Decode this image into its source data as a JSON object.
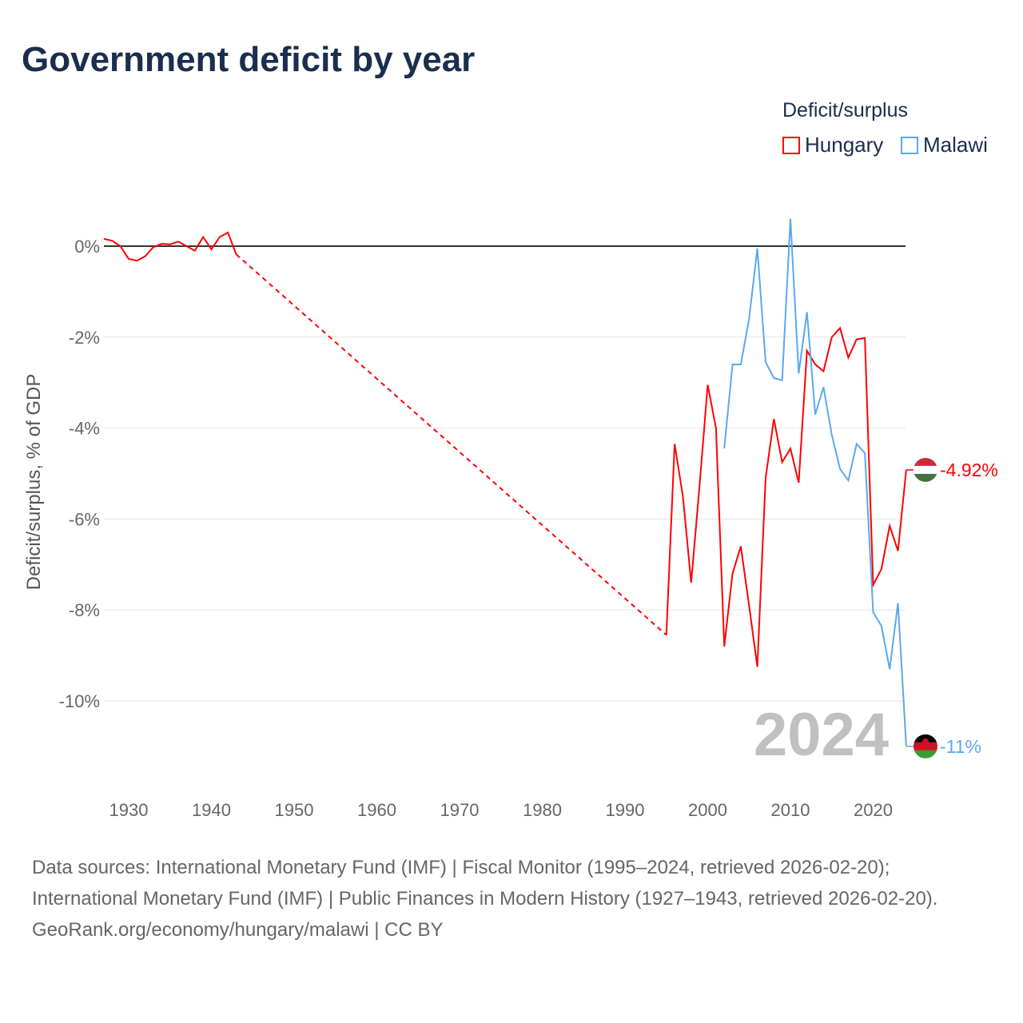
{
  "title": "Government deficit by year",
  "legend": {
    "title": "Deficit/surplus",
    "items": [
      {
        "name": "Hungary",
        "color": "#ff0000"
      },
      {
        "name": "Malawi",
        "color": "#5ba8ef"
      }
    ]
  },
  "year_watermark": "2024",
  "footer": {
    "sources": "Data sources: International Monetary Fund (IMF) | Fiscal Monitor (1995–2024, retrieved 2026-02-20); International Monetary Fund (IMF) | Public Finances in Modern History (1927–1943, retrieved 2026-02-20).",
    "credit": "GeoRank.org/economy/hungary/malawi | CC BY"
  },
  "chart_data": {
    "type": "line",
    "title": "Government deficit by year",
    "xlabel": "",
    "ylabel": "Deficit/surplus, % of GDP",
    "xlim": [
      1927,
      2024
    ],
    "ylim": [
      -11.8,
      1.0
    ],
    "xticks": [
      1930,
      1940,
      1950,
      1960,
      1970,
      1980,
      1990,
      2000,
      2010,
      2020
    ],
    "yticks": [
      {
        "v": 0,
        "label": "0%"
      },
      {
        "v": -2,
        "label": "-2%"
      },
      {
        "v": -4,
        "label": "-4%"
      },
      {
        "v": -6,
        "label": "-6%"
      },
      {
        "v": -8,
        "label": "-8%"
      },
      {
        "v": -10,
        "label": "-10%"
      }
    ],
    "series": [
      {
        "name": "Hungary",
        "color": "#ff0000",
        "end_label": "-4.92%",
        "x": [
          1927,
          1928,
          1929,
          1930,
          1931,
          1932,
          1933,
          1934,
          1935,
          1936,
          1937,
          1938,
          1939,
          1940,
          1941,
          1942,
          1943,
          1995,
          1996,
          1997,
          1998,
          1999,
          2000,
          2001,
          2002,
          2003,
          2004,
          2005,
          2006,
          2007,
          2008,
          2009,
          2010,
          2011,
          2012,
          2013,
          2014,
          2015,
          2016,
          2017,
          2018,
          2019,
          2020,
          2021,
          2022,
          2023,
          2024
        ],
        "y": [
          0.16,
          0.12,
          0.0,
          -0.28,
          -0.32,
          -0.22,
          -0.02,
          0.05,
          0.04,
          0.1,
          0.0,
          -0.1,
          0.2,
          -0.07,
          0.2,
          0.3,
          -0.18,
          -8.55,
          -4.35,
          -5.5,
          -7.4,
          -5.3,
          -3.05,
          -4.0,
          -8.8,
          -7.2,
          -6.6,
          -7.9,
          -9.25,
          -5.1,
          -3.8,
          -4.75,
          -4.45,
          -5.2,
          -2.3,
          -2.6,
          -2.75,
          -2.0,
          -1.8,
          -2.45,
          -2.05,
          -2.02,
          -7.45,
          -7.1,
          -6.15,
          -6.7,
          -4.92
        ]
      },
      {
        "name": "Malawi",
        "color": "#5ba8ef",
        "end_label": "-11%",
        "x": [
          2002,
          2003,
          2004,
          2005,
          2006,
          2007,
          2008,
          2009,
          2010,
          2011,
          2012,
          2013,
          2014,
          2015,
          2016,
          2017,
          2018,
          2019,
          2020,
          2021,
          2022,
          2023,
          2024
        ],
        "y": [
          -4.45,
          -2.6,
          -2.6,
          -1.6,
          -0.05,
          -2.55,
          -2.9,
          -2.95,
          0.6,
          -2.8,
          -1.45,
          -3.7,
          -3.1,
          -4.15,
          -4.9,
          -5.15,
          -4.35,
          -4.55,
          -8.05,
          -8.35,
          -9.3,
          -7.85,
          -11.0
        ]
      }
    ]
  }
}
